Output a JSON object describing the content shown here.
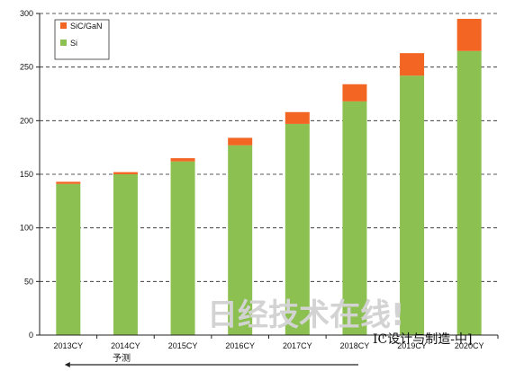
{
  "chart_data": {
    "type": "bar",
    "stacked": true,
    "categories": [
      "2013CY",
      "2014CY",
      "2015CY",
      "2016CY",
      "2017CY",
      "2018CY",
      "2019CY",
      "2020CY"
    ],
    "series": [
      {
        "name": "Si",
        "color": "#8cc152",
        "values": [
          141,
          150,
          162,
          177,
          197,
          218,
          242,
          265
        ]
      },
      {
        "name": "SiC/GaN",
        "color": "#f26522",
        "values": [
          2,
          2,
          3,
          7,
          11,
          16,
          21,
          30
        ]
      }
    ],
    "ylim": [
      0,
      300
    ],
    "yticks": [
      0,
      50,
      100,
      150,
      200,
      250,
      300
    ],
    "grid": true,
    "legend_position": "top-left",
    "title": "",
    "xlabel": "",
    "ylabel": "",
    "forecast_label": "予测",
    "forecast_start_category": "2013CY"
  },
  "watermark": {
    "text": "日经技术在线!"
  },
  "footer": {
    "text": "IC设计与制造-中]"
  }
}
